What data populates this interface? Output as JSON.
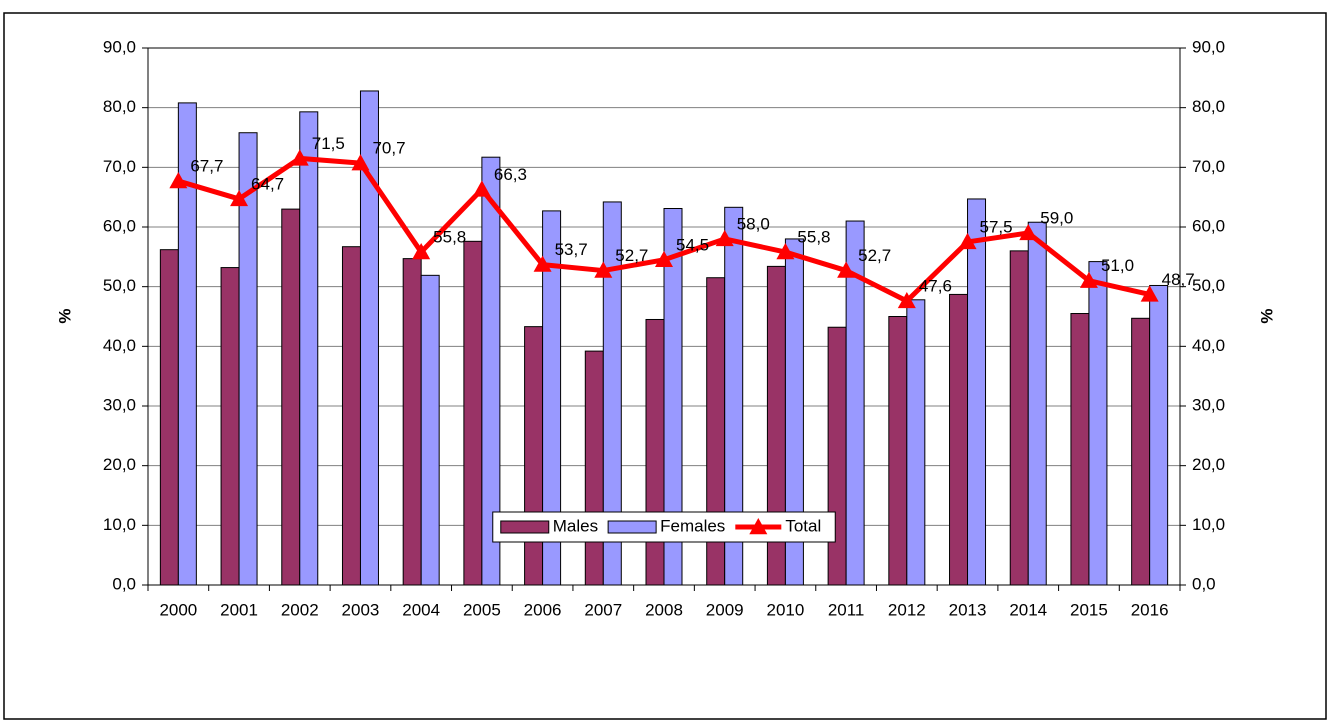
{
  "chart_data": {
    "type": "bar",
    "categories": [
      "2000",
      "2001",
      "2002",
      "2003",
      "2004",
      "2005",
      "2006",
      "2007",
      "2008",
      "2009",
      "2010",
      "2011",
      "2012",
      "2013",
      "2014",
      "2015",
      "2016"
    ],
    "series": [
      {
        "name": "Males",
        "color": "#993366",
        "values": [
          56.2,
          53.2,
          63.0,
          56.7,
          54.7,
          57.6,
          43.3,
          39.2,
          44.5,
          51.5,
          53.4,
          43.2,
          45.0,
          48.7,
          56.0,
          45.5,
          44.7
        ]
      },
      {
        "name": "Females",
        "color": "#9999ff",
        "values": [
          80.8,
          75.8,
          79.3,
          82.8,
          51.9,
          71.7,
          62.7,
          64.2,
          63.1,
          63.3,
          58.0,
          61.0,
          47.8,
          64.7,
          60.8,
          54.2,
          50.2
        ]
      },
      {
        "name": "Total",
        "type": "line",
        "axis": "y2",
        "color": "#ff0000",
        "marker": "triangle",
        "values": [
          67.7,
          64.7,
          71.5,
          70.7,
          55.8,
          66.3,
          53.7,
          52.7,
          54.5,
          58.0,
          55.8,
          52.7,
          47.6,
          57.5,
          59.0,
          51.0,
          48.7
        ],
        "value_labels": [
          "67,7",
          "64,7",
          "71,5",
          "70,7",
          "55,8",
          "66,3",
          "53,7",
          "52,7",
          "54,5",
          "58,0",
          "55,8",
          "52,7",
          "47,6",
          "57,5",
          "59,0",
          "51,0",
          "48,7"
        ]
      }
    ],
    "ylabel": "%",
    "y2label": "%",
    "ylim": [
      0,
      90
    ],
    "yticks": [
      {
        "value": 0,
        "label": "0,0"
      },
      {
        "value": 10,
        "label": "10,0"
      },
      {
        "value": 20,
        "label": "20,0"
      },
      {
        "value": 30,
        "label": "30,0"
      },
      {
        "value": 40,
        "label": "40,0"
      },
      {
        "value": 50,
        "label": "50,0"
      },
      {
        "value": 60,
        "label": "60,0"
      },
      {
        "value": 70,
        "label": "70,0"
      },
      {
        "value": 80,
        "label": "80,0"
      },
      {
        "value": 90,
        "label": "90,0"
      }
    ],
    "y2lim": [
      0,
      90
    ],
    "y2ticks": [
      {
        "value": 0,
        "label": "0,0"
      },
      {
        "value": 10,
        "label": "10,0"
      },
      {
        "value": 20,
        "label": "20,0"
      },
      {
        "value": 30,
        "label": "30,0"
      },
      {
        "value": 40,
        "label": "40,0"
      },
      {
        "value": 50,
        "label": "50,0"
      },
      {
        "value": 60,
        "label": "60,0"
      },
      {
        "value": 70,
        "label": "70,0"
      },
      {
        "value": 80,
        "label": "80,0"
      },
      {
        "value": 90,
        "label": "90,0"
      }
    ],
    "grid": true,
    "legend": "bottom"
  }
}
